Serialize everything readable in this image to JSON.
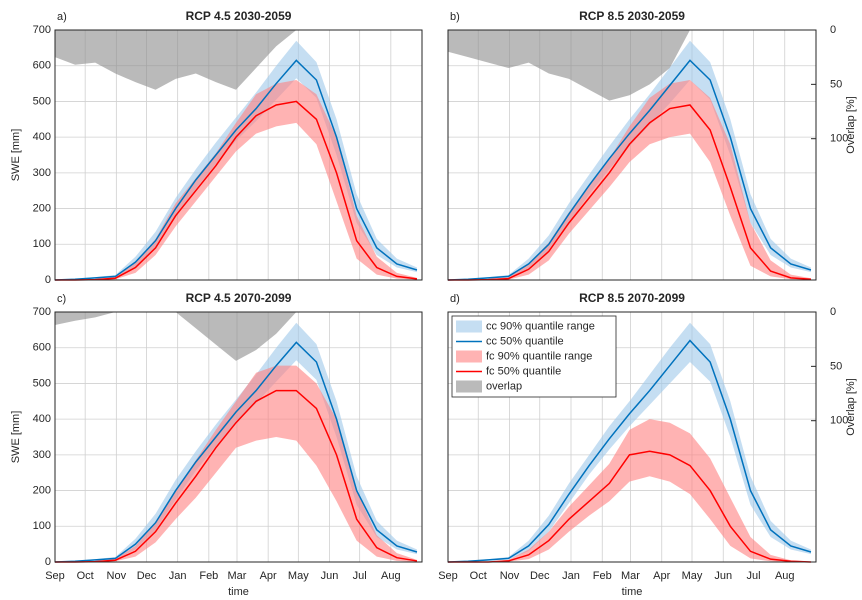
{
  "chart_data": [
    {
      "type": "band-line",
      "label": "a)",
      "title": "RCP 4.5  2030-2059",
      "ylabel": "SWE [mm]",
      "x": [
        0,
        20,
        40,
        60,
        80,
        100,
        120,
        140,
        160,
        180,
        200,
        220,
        240,
        260,
        280,
        300,
        320,
        340,
        360
      ],
      "xlim": [
        0,
        365
      ],
      "xticks": [
        0,
        30,
        61,
        91,
        122,
        153,
        181,
        212,
        242,
        273,
        303,
        334
      ],
      "ylim": [
        0,
        700
      ],
      "yticks": [
        0,
        100,
        200,
        300,
        400,
        500,
        600,
        700
      ],
      "show_yticklabels": true,
      "y2lim": [
        0,
        230
      ],
      "y2_reversed": true,
      "grid": true,
      "series": [
        {
          "type": "band",
          "color": "#9ec8ea",
          "lower": [
            0,
            1,
            4,
            7,
            35,
            90,
            175,
            255,
            325,
            390,
            445,
            505,
            565,
            510,
            350,
            160,
            70,
            35,
            22
          ],
          "upper": [
            0,
            3,
            8,
            14,
            65,
            135,
            230,
            310,
            385,
            455,
            525,
            600,
            670,
            610,
            450,
            240,
            115,
            60,
            35
          ]
        },
        {
          "type": "line",
          "color": "#0072bd",
          "values": [
            0,
            2,
            6,
            10,
            50,
            110,
            200,
            280,
            350,
            420,
            480,
            550,
            615,
            560,
            400,
            200,
            90,
            45,
            28
          ]
        },
        {
          "type": "band",
          "color": "#ff8080",
          "lower": [
            0,
            0,
            0,
            2,
            20,
            70,
            150,
            220,
            290,
            360,
            410,
            430,
            440,
            380,
            220,
            60,
            15,
            4,
            1
          ],
          "upper": [
            0,
            0,
            2,
            9,
            50,
            115,
            215,
            285,
            355,
            440,
            520,
            550,
            560,
            520,
            400,
            180,
            65,
            20,
            6
          ]
        },
        {
          "type": "line",
          "color": "#ff0000",
          "values": [
            0,
            0,
            1,
            5,
            35,
            90,
            180,
            250,
            320,
            400,
            460,
            490,
            500,
            450,
            300,
            110,
            35,
            10,
            3
          ]
        },
        {
          "type": "area",
          "axis": "y2",
          "color": "#8c8c8c",
          "values": [
            25,
            32,
            30,
            40,
            48,
            55,
            45,
            40,
            48,
            55,
            35,
            15,
            0,
            null,
            null,
            null,
            null,
            null,
            null
          ]
        }
      ]
    },
    {
      "type": "band-line",
      "label": "b)",
      "title": "RCP 8.5  2030-2059",
      "y2label": "Overlap [%]",
      "x": [
        0,
        20,
        40,
        60,
        80,
        100,
        120,
        140,
        160,
        180,
        200,
        220,
        240,
        260,
        280,
        300,
        320,
        340,
        360
      ],
      "xlim": [
        0,
        365
      ],
      "xticks": [
        0,
        30,
        61,
        91,
        122,
        153,
        181,
        212,
        242,
        273,
        303,
        334
      ],
      "ylim": [
        0,
        700
      ],
      "yticks": [
        0,
        100,
        200,
        300,
        400,
        500,
        600,
        700
      ],
      "show_yticklabels": false,
      "y2lim": [
        0,
        230
      ],
      "y2_reversed": true,
      "y2ticks": [
        0,
        50,
        100
      ],
      "grid": true,
      "series": [
        {
          "type": "band",
          "color": "#9ec8ea",
          "lower": [
            0,
            1,
            4,
            7,
            30,
            80,
            160,
            240,
            310,
            375,
            435,
            495,
            560,
            505,
            350,
            160,
            70,
            35,
            22
          ],
          "upper": [
            0,
            3,
            8,
            14,
            60,
            125,
            215,
            295,
            375,
            450,
            520,
            595,
            670,
            610,
            450,
            240,
            115,
            60,
            35
          ]
        },
        {
          "type": "line",
          "color": "#0072bd",
          "values": [
            0,
            2,
            6,
            10,
            45,
            100,
            185,
            265,
            340,
            410,
            475,
            545,
            615,
            560,
            400,
            200,
            90,
            45,
            28
          ]
        },
        {
          "type": "band",
          "color": "#ff8080",
          "lower": [
            0,
            0,
            0,
            1,
            15,
            55,
            130,
            195,
            260,
            330,
            380,
            400,
            410,
            330,
            180,
            40,
            10,
            2,
            0
          ],
          "upper": [
            0,
            0,
            2,
            8,
            45,
            105,
            190,
            265,
            340,
            430,
            510,
            550,
            560,
            510,
            380,
            160,
            55,
            15,
            5
          ]
        },
        {
          "type": "line",
          "color": "#ff0000",
          "values": [
            0,
            0,
            1,
            4,
            30,
            80,
            160,
            230,
            300,
            380,
            440,
            480,
            490,
            420,
            260,
            90,
            25,
            6,
            2
          ]
        },
        {
          "type": "area",
          "axis": "y2",
          "color": "#8c8c8c",
          "values": [
            20,
            25,
            30,
            35,
            30,
            40,
            45,
            55,
            65,
            60,
            50,
            35,
            0,
            null,
            null,
            null,
            null,
            null,
            null
          ]
        }
      ]
    },
    {
      "type": "band-line",
      "label": "c)",
      "title": "RCP 4.5  2070-2099",
      "ylabel": "SWE [mm]",
      "xlabel": "time",
      "x": [
        0,
        20,
        40,
        60,
        80,
        100,
        120,
        140,
        160,
        180,
        200,
        220,
        240,
        260,
        280,
        300,
        320,
        340,
        360
      ],
      "xlim": [
        0,
        365
      ],
      "xticks": [
        {
          "value": 0,
          "label": "Sep"
        },
        {
          "value": 30,
          "label": "Oct"
        },
        {
          "value": 61,
          "label": "Nov"
        },
        {
          "value": 91,
          "label": "Dec"
        },
        {
          "value": 122,
          "label": "Jan"
        },
        {
          "value": 153,
          "label": "Feb"
        },
        {
          "value": 181,
          "label": "Mar"
        },
        {
          "value": 212,
          "label": "Apr"
        },
        {
          "value": 242,
          "label": "May"
        },
        {
          "value": 273,
          "label": "Jun"
        },
        {
          "value": 303,
          "label": "Jul"
        },
        {
          "value": 334,
          "label": "Aug"
        }
      ],
      "ylim": [
        0,
        700
      ],
      "yticks": [
        0,
        100,
        200,
        300,
        400,
        500,
        600,
        700
      ],
      "show_yticklabels": true,
      "y2lim": [
        0,
        230
      ],
      "y2_reversed": true,
      "grid": true,
      "series": [
        {
          "type": "band",
          "color": "#9ec8ea",
          "lower": [
            0,
            1,
            4,
            7,
            35,
            90,
            175,
            255,
            325,
            390,
            445,
            505,
            565,
            510,
            350,
            160,
            70,
            35,
            22
          ],
          "upper": [
            0,
            3,
            8,
            14,
            65,
            135,
            230,
            310,
            385,
            455,
            525,
            600,
            670,
            610,
            450,
            240,
            115,
            60,
            35
          ]
        },
        {
          "type": "line",
          "color": "#0072bd",
          "values": [
            0,
            2,
            6,
            10,
            50,
            110,
            200,
            280,
            350,
            420,
            480,
            550,
            615,
            560,
            400,
            200,
            90,
            45,
            28
          ]
        },
        {
          "type": "band",
          "color": "#ff8080",
          "lower": [
            0,
            0,
            0,
            2,
            15,
            55,
            120,
            180,
            250,
            320,
            340,
            350,
            340,
            270,
            170,
            60,
            15,
            3,
            0
          ],
          "upper": [
            0,
            0,
            2,
            9,
            45,
            110,
            200,
            285,
            370,
            450,
            530,
            550,
            550,
            500,
            400,
            200,
            75,
            25,
            6
          ]
        },
        {
          "type": "line",
          "color": "#ff0000",
          "values": [
            0,
            0,
            1,
            5,
            30,
            85,
            165,
            240,
            320,
            390,
            450,
            480,
            480,
            430,
            300,
            120,
            40,
            12,
            3
          ]
        },
        {
          "type": "area",
          "axis": "y2",
          "color": "#8c8c8c",
          "values": [
            12,
            8,
            5,
            0,
            0,
            0,
            0,
            15,
            30,
            45,
            35,
            20,
            0,
            null,
            null,
            null,
            null,
            null,
            null
          ]
        }
      ]
    },
    {
      "type": "band-line",
      "label": "d)",
      "title": "RCP 8.5  2070-2099",
      "xlabel": "time",
      "y2label": "Overlap [%]",
      "legend": "upper left",
      "x": [
        0,
        20,
        40,
        60,
        80,
        100,
        120,
        140,
        160,
        180,
        200,
        220,
        240,
        260,
        280,
        300,
        320,
        340,
        360
      ],
      "xlim": [
        0,
        365
      ],
      "xticks": [
        {
          "value": 0,
          "label": "Sep"
        },
        {
          "value": 30,
          "label": "Oct"
        },
        {
          "value": 61,
          "label": "Nov"
        },
        {
          "value": 91,
          "label": "Dec"
        },
        {
          "value": 122,
          "label": "Jan"
        },
        {
          "value": 153,
          "label": "Feb"
        },
        {
          "value": 181,
          "label": "Mar"
        },
        {
          "value": 212,
          "label": "Apr"
        },
        {
          "value": 242,
          "label": "May"
        },
        {
          "value": 273,
          "label": "Jun"
        },
        {
          "value": 303,
          "label": "Jul"
        },
        {
          "value": 334,
          "label": "Aug"
        }
      ],
      "ylim": [
        0,
        700
      ],
      "yticks": [
        0,
        100,
        200,
        300,
        400,
        500,
        600,
        700
      ],
      "show_yticklabels": false,
      "y2lim": [
        0,
        230
      ],
      "y2_reversed": true,
      "y2ticks": [
        0,
        50,
        100
      ],
      "grid": true,
      "series": [
        {
          "name": "cc 90% quantile range",
          "type": "band",
          "color": "#9ec8ea",
          "lower": [
            0,
            1,
            4,
            7,
            30,
            85,
            165,
            245,
            315,
            380,
            440,
            500,
            560,
            505,
            350,
            160,
            70,
            35,
            22
          ],
          "upper": [
            0,
            3,
            8,
            14,
            60,
            130,
            220,
            300,
            380,
            450,
            525,
            600,
            670,
            610,
            450,
            240,
            115,
            60,
            35
          ]
        },
        {
          "name": "cc 50% quantile",
          "type": "line",
          "color": "#0072bd",
          "values": [
            0,
            2,
            6,
            10,
            45,
            105,
            190,
            270,
            345,
            415,
            480,
            550,
            620,
            560,
            400,
            200,
            90,
            45,
            28
          ]
        },
        {
          "name": "fc 90% quantile range",
          "type": "band",
          "color": "#ff8080",
          "lower": [
            0,
            0,
            0,
            1,
            8,
            35,
            85,
            130,
            170,
            225,
            240,
            225,
            190,
            120,
            45,
            10,
            2,
            0,
            0
          ],
          "upper": [
            0,
            0,
            1,
            6,
            35,
            85,
            155,
            215,
            275,
            370,
            400,
            390,
            360,
            290,
            180,
            70,
            20,
            5,
            1
          ]
        },
        {
          "name": "fc 50% quantile",
          "type": "line",
          "color": "#ff0000",
          "values": [
            0,
            0,
            0,
            3,
            20,
            60,
            120,
            170,
            220,
            300,
            310,
            300,
            270,
            200,
            100,
            30,
            8,
            2,
            0
          ]
        },
        {
          "name": "overlap",
          "type": "area",
          "axis": "y2",
          "color": "#8c8c8c",
          "values": [
            0,
            0,
            0,
            0,
            0,
            0,
            0,
            0,
            0,
            0,
            0,
            0,
            0,
            0,
            0,
            0,
            0,
            0,
            0
          ]
        }
      ]
    }
  ]
}
